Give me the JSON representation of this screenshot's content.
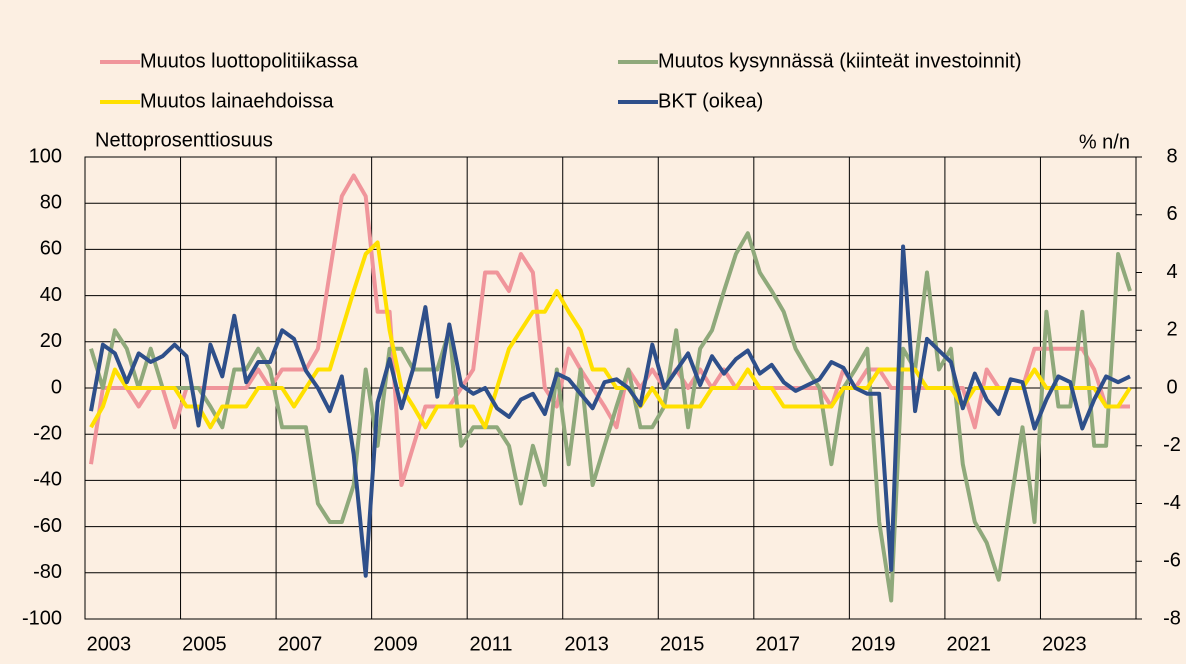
{
  "chart_data": {
    "type": "line",
    "y_label": "Nettoprosenttiosuus",
    "y2_label": "% n/n",
    "legend": "top",
    "grid": true,
    "categories": [
      "2003",
      null,
      null,
      null,
      null,
      null,
      null,
      null,
      "2005",
      null,
      null,
      null,
      null,
      null,
      null,
      null,
      "2007",
      null,
      null,
      null,
      null,
      null,
      null,
      null,
      "2009",
      null,
      null,
      null,
      null,
      null,
      null,
      null,
      "2011",
      null,
      null,
      null,
      null,
      null,
      null,
      null,
      "2013",
      null,
      null,
      null,
      null,
      null,
      null,
      null,
      "2015",
      null,
      null,
      null,
      null,
      null,
      null,
      null,
      "2017",
      null,
      null,
      null,
      null,
      null,
      null,
      null,
      "2019",
      null,
      null,
      null,
      null,
      null,
      null,
      null,
      "2021",
      null,
      null,
      null,
      null,
      null,
      null,
      null,
      "2023",
      null,
      null,
      null,
      null,
      null,
      null,
      null
    ],
    "ylim": [
      -100,
      100
    ],
    "yticks": [
      -100,
      -80,
      -60,
      -40,
      -20,
      0,
      20,
      40,
      60,
      80,
      100
    ],
    "y2lim": [
      -8,
      8
    ],
    "y2ticks": [
      -8,
      -6,
      -4,
      -2,
      0,
      2,
      4,
      6,
      8
    ],
    "series": [
      {
        "name": "Muutos luottopolitiikassa",
        "color": "#f0959b",
        "values": [
          -33,
          0,
          0,
          0,
          -8,
          0,
          0,
          -17,
          0,
          0,
          0,
          0,
          0,
          0,
          8,
          0,
          8,
          8,
          8,
          17,
          50,
          83,
          92,
          83,
          33,
          33,
          -42,
          -25,
          -8,
          -8,
          -8,
          0,
          8,
          50,
          50,
          42,
          58,
          50,
          0,
          -8,
          17,
          8,
          0,
          -8,
          -17,
          8,
          0,
          8,
          0,
          8,
          0,
          8,
          0,
          8,
          0,
          0,
          0,
          0,
          0,
          0,
          0,
          0,
          -8,
          8,
          0,
          8,
          8,
          0,
          0,
          0,
          0,
          0,
          0,
          0,
          -17,
          8,
          0,
          0,
          0,
          17,
          17,
          17,
          17,
          17,
          8,
          -8,
          -8,
          -8
        ]
      },
      {
        "name": "Muutos kysynnässä (kiinteät investoinnit)",
        "color": "#8fa97b",
        "values": [
          17,
          0,
          25,
          17,
          0,
          17,
          0,
          0,
          0,
          0,
          -8,
          -17,
          8,
          8,
          17,
          8,
          -17,
          -17,
          -17,
          -50,
          -58,
          -58,
          -42,
          8,
          -25,
          17,
          17,
          8,
          8,
          8,
          25,
          -25,
          -17,
          -17,
          -17,
          -25,
          -50,
          -25,
          -42,
          8,
          -33,
          8,
          -42,
          -25,
          -8,
          8,
          -17,
          -17,
          -8,
          25,
          -17,
          17,
          25,
          42,
          58,
          67,
          50,
          42,
          33,
          17,
          8,
          0,
          -33,
          0,
          8,
          17,
          -58,
          -92,
          17,
          8,
          50,
          8,
          17,
          -33,
          -58,
          -67,
          -83,
          -50,
          -17,
          -58,
          33,
          -8,
          -8,
          33,
          -25,
          -25,
          58,
          42
        ]
      },
      {
        "name": "Muutos lainaehdoissa",
        "color": "#ffe000",
        "values": [
          -17,
          -8,
          8,
          0,
          0,
          0,
          0,
          0,
          -8,
          -8,
          -17,
          -8,
          -8,
          -8,
          0,
          0,
          0,
          -8,
          0,
          8,
          8,
          25,
          42,
          58,
          63,
          25,
          0,
          -8,
          -17,
          -8,
          -8,
          -8,
          -8,
          -17,
          0,
          17,
          25,
          33,
          33,
          42,
          33,
          25,
          8,
          8,
          0,
          0,
          -8,
          0,
          -8,
          -8,
          -8,
          -8,
          0,
          0,
          0,
          8,
          0,
          0,
          -8,
          -8,
          -8,
          -8,
          -8,
          0,
          0,
          0,
          8,
          8,
          8,
          8,
          0,
          0,
          0,
          -8,
          0,
          0,
          0,
          0,
          0,
          8,
          0,
          0,
          0,
          0,
          0,
          -8,
          -8,
          0
        ]
      },
      {
        "name": "BKT (oikea)",
        "color": "#2e4f8a",
        "axis": "y2",
        "values": [
          -0.8,
          1.5,
          1.2,
          0.2,
          1.2,
          0.9,
          1.1,
          1.5,
          1.1,
          -1.3,
          1.5,
          0.4,
          2.5,
          0.2,
          0.9,
          0.9,
          2.0,
          1.7,
          0.6,
          0.0,
          -0.8,
          0.4,
          -2.3,
          -6.5,
          -0.5,
          1.0,
          -0.7,
          0.7,
          2.8,
          -0.3,
          2.2,
          0.1,
          -0.2,
          0.0,
          -0.7,
          -1.0,
          -0.4,
          -0.2,
          -0.9,
          0.5,
          0.3,
          -0.2,
          -0.7,
          0.2,
          0.3,
          0.0,
          -0.6,
          1.5,
          0.0,
          0.6,
          1.2,
          0.1,
          1.1,
          0.5,
          1.0,
          1.3,
          0.5,
          0.8,
          0.2,
          -0.1,
          0.1,
          0.3,
          0.9,
          0.7,
          0.0,
          -0.2,
          -0.2,
          -6.3,
          4.9,
          -0.8,
          1.7,
          1.3,
          0.9,
          -0.7,
          0.5,
          -0.4,
          -0.9,
          0.3,
          0.2,
          -1.4,
          -0.4,
          0.4,
          0.2,
          -1.4,
          -0.4,
          0.4,
          0.2,
          0.4
        ]
      }
    ]
  }
}
